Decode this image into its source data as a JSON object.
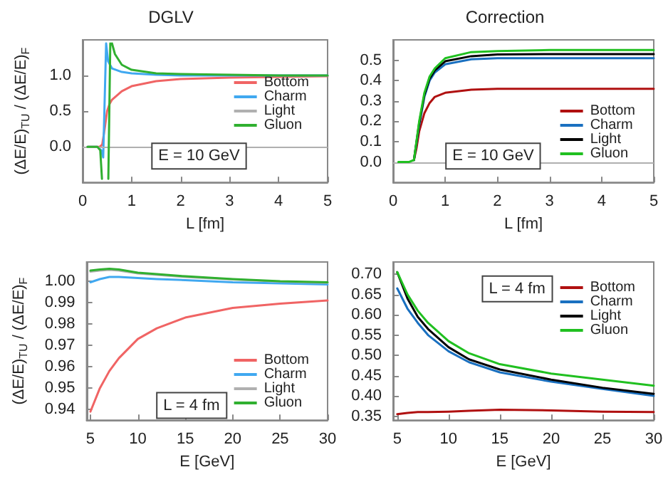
{
  "chart_data": [
    {
      "type": "line",
      "title": "DGLV",
      "xlabel": "L [fm]",
      "ylabel": "(ΔE/E)$_{TU}$ / (ΔE/E)$_{F}$",
      "annotations": [
        "E = 10 GeV"
      ],
      "legend": "right",
      "grid": false,
      "xlim": [
        0,
        5
      ],
      "xticks": [
        0,
        1,
        2,
        3,
        4,
        5
      ],
      "ylim": [
        -0.5,
        1.5
      ],
      "yticks": [
        {
          "value": 0,
          "label": "0.0"
        },
        {
          "value": 0.5,
          "label": "0.5"
        },
        {
          "value": 1,
          "label": "1.0"
        }
      ],
      "ref_lines": [
        {
          "axis": "y",
          "value": 0,
          "color": "#b0b0b0"
        }
      ],
      "series": [
        {
          "name": "Bottom",
          "color": "#f06464",
          "x": [
            0.1,
            0.35,
            0.4,
            0.45,
            0.5,
            0.55,
            0.6,
            0.8,
            1,
            1.5,
            2,
            3,
            4,
            5
          ],
          "values": [
            0,
            0,
            0.03,
            0.25,
            0.5,
            0.6,
            0.66,
            0.78,
            0.85,
            0.92,
            0.95,
            0.97,
            0.98,
            0.99
          ]
        },
        {
          "name": "Charm",
          "color": "#40a8f0",
          "x": [
            0.1,
            0.3,
            0.38,
            0.42,
            0.48,
            0.52,
            0.6,
            0.8,
            1,
            1.5,
            2,
            3,
            4,
            5
          ],
          "values": [
            0,
            0,
            -0.05,
            -0.15,
            1.45,
            1.2,
            1.1,
            1.05,
            1.03,
            1.01,
            1,
            1,
            1,
            1
          ]
        },
        {
          "name": "Light",
          "color": "#b0b0b0"
        },
        {
          "name": "Gluon",
          "color": "#30b030",
          "x": [
            0.1,
            0.3,
            0.36,
            0.395,
            0.46,
            0.525,
            0.565,
            0.58,
            0.6,
            0.66,
            0.8,
            1,
            1.5,
            2,
            3,
            4,
            5
          ],
          "values": [
            0,
            0,
            -0.05,
            -0.45,
            null,
            -0.45,
            1.45,
            null,
            1.45,
            1.3,
            1.15,
            1.08,
            1.03,
            1.02,
            1.01,
            1,
            1
          ]
        }
      ]
    },
    {
      "type": "line",
      "title": "Correction",
      "xlabel": "L [fm]",
      "annotations": [
        "E = 10 GeV"
      ],
      "legend": "right",
      "grid": false,
      "xlim": [
        0,
        5
      ],
      "xticks": [
        0,
        1,
        2,
        3,
        4,
        5
      ],
      "ylim": [
        -0.1,
        0.6
      ],
      "yticks": [
        {
          "value": 0,
          "label": "0.0"
        },
        0.1,
        0.2,
        0.3,
        0.4,
        0.5
      ],
      "ref_lines": [
        {
          "axis": "y",
          "value": 0,
          "color": "#b0b0b0"
        }
      ],
      "series": [
        {
          "name": "Bottom",
          "color": "#b01010",
          "x": [
            0.4,
            0.45,
            0.5,
            0.6,
            0.7,
            0.8,
            1,
            1.5,
            2,
            3,
            5
          ],
          "values": [
            0.01,
            0.07,
            0.15,
            0.24,
            0.29,
            0.32,
            0.34,
            0.355,
            0.36,
            0.36,
            0.36
          ]
        },
        {
          "name": "Charm",
          "color": "#1a70c0",
          "x": [
            0.4,
            0.5,
            0.6,
            0.7,
            0.8,
            1,
            1.5,
            2,
            3,
            5
          ],
          "values": [
            0.01,
            0.18,
            0.32,
            0.4,
            0.44,
            0.48,
            0.505,
            0.51,
            0.51,
            0.51
          ]
        },
        {
          "name": "Light",
          "color": "#000000",
          "x": [
            0.4,
            0.5,
            0.6,
            0.7,
            0.8,
            1,
            1.5,
            2,
            3,
            5
          ],
          "values": [
            0.01,
            0.19,
            0.33,
            0.41,
            0.45,
            0.495,
            0.52,
            0.528,
            0.53,
            0.53
          ]
        },
        {
          "name": "Gluon",
          "color": "#20c020",
          "x": [
            0.1,
            0.3,
            0.4,
            0.5,
            0.6,
            0.7,
            0.8,
            1,
            1.5,
            2,
            3,
            5
          ],
          "values": [
            0,
            0,
            0.01,
            0.2,
            0.34,
            0.42,
            0.46,
            0.51,
            0.54,
            0.545,
            0.55,
            0.55
          ]
        }
      ]
    },
    {
      "type": "line",
      "xlabel": "E [GeV]",
      "ylabel": "(ΔE/E)$_{TU}$ / (ΔE/E)$_{F}$",
      "annotations": [
        "L = 4 fm"
      ],
      "legend": "bottom right",
      "grid": false,
      "x": [
        5,
        6,
        7,
        8,
        10,
        12,
        15,
        20,
        25,
        30
      ],
      "xlim": [
        4.6,
        30
      ],
      "xticks": [
        5,
        10,
        15,
        20,
        25,
        30
      ],
      "ylim": [
        0.935,
        1.009
      ],
      "yticks": [
        0.94,
        0.95,
        0.96,
        0.97,
        0.98,
        0.99,
        {
          "value": 1,
          "label": "1.00"
        }
      ],
      "series": [
        {
          "name": "Bottom",
          "color": "#f06464",
          "values": [
            0.939,
            0.95,
            0.958,
            0.964,
            0.973,
            0.978,
            0.983,
            0.9875,
            0.9895,
            0.991
          ]
        },
        {
          "name": "Charm",
          "color": "#40a8f0",
          "values": [
            0.9995,
            1.001,
            1.002,
            1.002,
            1.0015,
            1.001,
            1.0005,
            0.9995,
            0.999,
            0.9985
          ]
        },
        {
          "name": "Light",
          "color": "#b0b0b0",
          "values": [
            1.0045,
            1.005,
            1.0053,
            1.005,
            1.0037,
            1.003,
            1.002,
            1.0008,
            0.9998,
            0.9993
          ]
        },
        {
          "name": "Gluon",
          "color": "#30b030",
          "values": [
            1.005,
            1.0055,
            1.0058,
            1.0055,
            1.004,
            1.0033,
            1.0023,
            1.001,
            1,
            0.9995
          ]
        }
      ]
    },
    {
      "type": "line",
      "xlabel": "E [GeV]",
      "annotations": [
        "L = 4 fm"
      ],
      "legend": "top right",
      "grid": false,
      "x": [
        5,
        6,
        7,
        8,
        10,
        12,
        15,
        20,
        25,
        30
      ],
      "xlim": [
        4.6,
        30
      ],
      "xticks": [
        5,
        10,
        15,
        20,
        25,
        30
      ],
      "ylim": [
        0.34,
        0.73
      ],
      "yticks": [
        0.35,
        {
          "value": 0.4,
          "label": "0.40"
        },
        0.45,
        {
          "value": 0.5,
          "label": "0.50"
        },
        0.55,
        {
          "value": 0.6,
          "label": "0.60"
        },
        0.65,
        {
          "value": 0.7,
          "label": "0.70"
        }
      ],
      "series": [
        {
          "name": "Bottom",
          "color": "#b01010",
          "values": [
            0.355,
            0.358,
            0.36,
            0.36,
            0.361,
            0.363,
            0.366,
            0.364,
            0.361,
            0.36
          ]
        },
        {
          "name": "Charm",
          "color": "#1a70c0",
          "values": [
            0.665,
            0.615,
            0.58,
            0.55,
            0.51,
            0.483,
            0.458,
            0.435,
            0.417,
            0.4
          ]
        },
        {
          "name": "Light",
          "color": "#000000",
          "values": [
            0.705,
            0.64,
            0.595,
            0.565,
            0.52,
            0.49,
            0.465,
            0.44,
            0.42,
            0.405
          ]
        },
        {
          "name": "Gluon",
          "color": "#20c020",
          "values": [
            0.705,
            0.65,
            0.61,
            0.58,
            0.535,
            0.505,
            0.478,
            0.455,
            0.44,
            0.425
          ]
        }
      ]
    }
  ]
}
